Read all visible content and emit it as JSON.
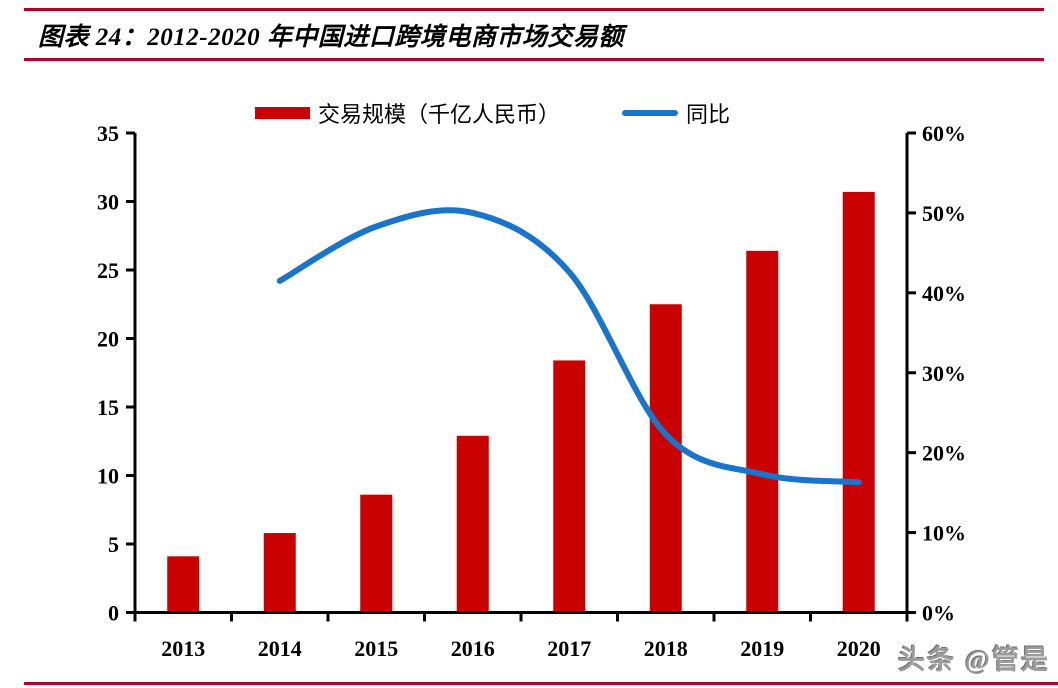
{
  "header": {
    "title": "图表 24：2012-2020 年中国进口跨境电商市场交易额"
  },
  "watermark": "头条 @管是",
  "colors": {
    "rule_red": "#B00327",
    "bar_red": "#C90101",
    "line_blue": "#1B74CB",
    "axis_black": "#000000",
    "watermark_gray": "#9B9B9B"
  },
  "chart_data": {
    "type": "bar",
    "subtype": "combo-bar-line-dual-axis",
    "title": "",
    "categories": [
      "2013",
      "2014",
      "2015",
      "2016",
      "2017",
      "2018",
      "2019",
      "2020"
    ],
    "series": [
      {
        "name": "交易规模（千亿人民币）",
        "type": "bar",
        "axis": "left",
        "color": "#C90101",
        "values": [
          4.1,
          5.8,
          8.6,
          12.9,
          18.4,
          22.5,
          26.4,
          30.7
        ]
      },
      {
        "name": "同比",
        "type": "line",
        "axis": "right",
        "color": "#1B74CB",
        "values": [
          null,
          41.5,
          48.3,
          50.0,
          42.6,
          22.3,
          17.3,
          16.3
        ]
      }
    ],
    "left_axis": {
      "min": 0,
      "max": 35,
      "step": 5,
      "tick_labels": [
        "0",
        "5",
        "10",
        "15",
        "20",
        "25",
        "30",
        "35"
      ]
    },
    "right_axis": {
      "min": 0,
      "max": 60,
      "step": 10,
      "tick_labels": [
        "0%",
        "10%",
        "20%",
        "30%",
        "40%",
        "50%",
        "60%"
      ]
    },
    "grid": false,
    "legend_position": "top",
    "smooth_line": true
  }
}
